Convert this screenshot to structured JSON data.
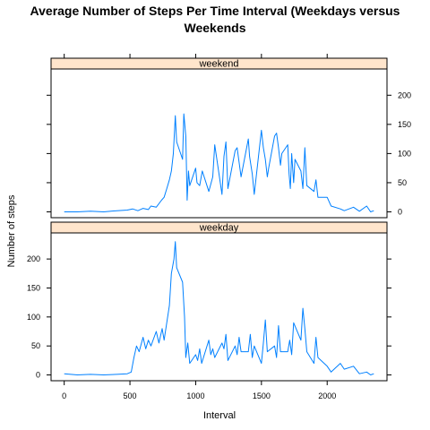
{
  "chart_data": {
    "type": "line",
    "title_lines": [
      "Average Number of Steps Per Time Interval (Weekdays versus",
      "Weekends"
    ],
    "xlabel": "Interval",
    "ylabel": "Number of steps",
    "xlim": [
      -100,
      2455
    ],
    "ylim": [
      -10,
      245
    ],
    "x_ticks": [
      0,
      500,
      1000,
      1500,
      2000
    ],
    "y_ticks": [
      0,
      50,
      100,
      150,
      200
    ],
    "strip_color": "#ffe5cc",
    "line_color": "#0080ff",
    "panels": [
      {
        "name": "weekend",
        "x": [
          0,
          100,
          200,
          300,
          400,
          480,
          520,
          560,
          600,
          640,
          660,
          700,
          740,
          760,
          780,
          800,
          815,
          830,
          845,
          855,
          900,
          910,
          925,
          935,
          945,
          955,
          1000,
          1010,
          1030,
          1050,
          1100,
          1130,
          1145,
          1200,
          1215,
          1230,
          1245,
          1300,
          1315,
          1330,
          1345,
          1400,
          1410,
          1420,
          1430,
          1445,
          1500,
          1515,
          1530,
          1545,
          1555,
          1600,
          1615,
          1630,
          1645,
          1655,
          1700,
          1710,
          1720,
          1730,
          1745,
          1755,
          1800,
          1815,
          1830,
          1845,
          1900,
          1915,
          1930,
          2000,
          2030,
          2100,
          2130,
          2200,
          2245,
          2300,
          2330,
          2355
        ],
        "values": [
          0,
          0,
          1,
          0,
          2,
          3,
          5,
          2,
          6,
          4,
          10,
          8,
          20,
          25,
          40,
          55,
          70,
          100,
          165,
          120,
          90,
          168,
          130,
          20,
          70,
          45,
          75,
          50,
          45,
          70,
          35,
          60,
          115,
          30,
          95,
          120,
          40,
          105,
          110,
          85,
          60,
          125,
          95,
          80,
          65,
          30,
          140,
          110,
          90,
          60,
          75,
          130,
          135,
          110,
          80,
          100,
          115,
          65,
          40,
          100,
          50,
          90,
          70,
          40,
          110,
          45,
          35,
          55,
          25,
          25,
          10,
          5,
          2,
          8,
          1,
          10,
          0,
          2
        ]
      },
      {
        "name": "weekday",
        "x": [
          0,
          100,
          200,
          300,
          400,
          480,
          510,
          530,
          550,
          570,
          600,
          620,
          640,
          660,
          700,
          720,
          745,
          760,
          800,
          815,
          835,
          845,
          855,
          900,
          915,
          925,
          940,
          955,
          1000,
          1015,
          1030,
          1045,
          1100,
          1115,
          1130,
          1145,
          1200,
          1215,
          1230,
          1245,
          1300,
          1315,
          1330,
          1345,
          1400,
          1415,
          1430,
          1445,
          1500,
          1515,
          1530,
          1545,
          1600,
          1615,
          1630,
          1645,
          1700,
          1715,
          1730,
          1745,
          1800,
          1815,
          1830,
          1845,
          1900,
          1915,
          1930,
          2000,
          2030,
          2100,
          2130,
          2200,
          2245,
          2300,
          2330,
          2355
        ],
        "values": [
          2,
          0,
          1,
          0,
          1,
          2,
          5,
          30,
          50,
          40,
          65,
          45,
          60,
          50,
          75,
          55,
          80,
          60,
          120,
          175,
          200,
          230,
          185,
          160,
          100,
          30,
          55,
          20,
          35,
          25,
          45,
          20,
          60,
          35,
          45,
          30,
          55,
          45,
          70,
          25,
          50,
          35,
          65,
          40,
          40,
          70,
          30,
          50,
          20,
          55,
          95,
          40,
          50,
          30,
          85,
          40,
          40,
          60,
          35,
          90,
          60,
          115,
          80,
          40,
          20,
          65,
          30,
          15,
          5,
          20,
          10,
          15,
          2,
          5,
          0,
          2
        ]
      }
    ]
  }
}
